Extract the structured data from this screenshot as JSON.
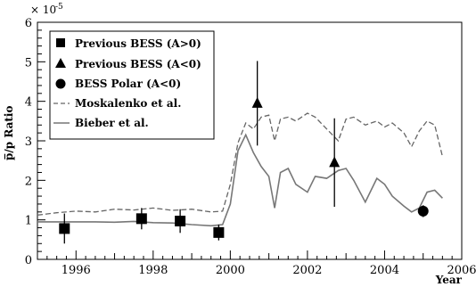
{
  "chart_data": {
    "type": "scatter",
    "title": "",
    "xlabel": "Year",
    "ylabel": "p̅/p Ratio",
    "y_exponent_label": "× 10",
    "y_exponent_power": "-5",
    "xlim": [
      1995,
      2006
    ],
    "ylim": [
      0,
      6
    ],
    "x_ticks": [
      1996,
      1998,
      2000,
      2002,
      2004,
      2006
    ],
    "y_ticks": [
      0,
      1,
      2,
      3,
      4,
      5,
      6
    ],
    "grid": false,
    "legend_position": "top-left",
    "series": [
      {
        "name": "Previous BESS (A>0)",
        "kind": "points",
        "marker": "square",
        "points": [
          {
            "x": 1995.7,
            "y": 0.78,
            "err": 0.38
          },
          {
            "x": 1997.7,
            "y": 1.03,
            "err": 0.27
          },
          {
            "x": 1998.7,
            "y": 0.97,
            "err": 0.3
          },
          {
            "x": 1999.7,
            "y": 0.68,
            "err": 0.2
          }
        ]
      },
      {
        "name": "Previous BESS (A<0)",
        "kind": "points",
        "marker": "triangle",
        "points": [
          {
            "x": 2000.7,
            "y": 3.95,
            "err": 1.07
          },
          {
            "x": 2002.7,
            "y": 2.45,
            "err": 1.12
          }
        ]
      },
      {
        "name": "BESS Polar (A<0)",
        "kind": "points",
        "marker": "circle",
        "points": [
          {
            "x": 2005.0,
            "y": 1.22,
            "err": 0.15
          }
        ]
      },
      {
        "name": "Moskalenko et al.",
        "kind": "line",
        "style": "dashed",
        "color": "#666666",
        "x": [
          1995.0,
          1995.5,
          1996.0,
          1996.5,
          1997.0,
          1997.5,
          1998.0,
          1998.5,
          1999.0,
          1999.5,
          1999.8,
          2000.0,
          2000.2,
          2000.4,
          2000.6,
          2000.8,
          2001.0,
          2001.15,
          2001.3,
          2001.5,
          2001.7,
          2002.0,
          2002.2,
          2002.5,
          2002.8,
          2003.0,
          2003.2,
          2003.5,
          2003.8,
          2004.0,
          2004.2,
          2004.5,
          2004.7,
          2004.9,
          2005.1,
          2005.3,
          2005.5
        ],
        "y": [
          1.12,
          1.18,
          1.22,
          1.2,
          1.27,
          1.25,
          1.3,
          1.24,
          1.27,
          1.2,
          1.22,
          1.9,
          2.95,
          3.45,
          3.3,
          3.6,
          3.65,
          3.0,
          3.55,
          3.6,
          3.5,
          3.7,
          3.6,
          3.3,
          3.0,
          3.55,
          3.6,
          3.4,
          3.5,
          3.35,
          3.45,
          3.2,
          2.85,
          3.25,
          3.5,
          3.4,
          2.6
        ]
      },
      {
        "name": "Bieber et al.",
        "kind": "line",
        "style": "solid",
        "color": "#777777",
        "x": [
          1995.0,
          1995.5,
          1996.0,
          1996.5,
          1997.0,
          1997.5,
          1998.0,
          1998.5,
          1999.0,
          1999.5,
          1999.8,
          2000.0,
          2000.2,
          2000.4,
          2000.6,
          2000.8,
          2001.0,
          2001.15,
          2001.3,
          2001.5,
          2001.7,
          2002.0,
          2002.2,
          2002.5,
          2002.8,
          2003.0,
          2003.2,
          2003.5,
          2003.8,
          2004.0,
          2004.2,
          2004.5,
          2004.7,
          2004.9,
          2005.1,
          2005.3,
          2005.5
        ],
        "y": [
          0.95,
          0.95,
          0.95,
          0.95,
          0.94,
          0.96,
          0.93,
          0.92,
          0.88,
          0.85,
          0.88,
          1.4,
          2.75,
          3.15,
          2.7,
          2.35,
          2.1,
          1.3,
          2.2,
          2.3,
          1.9,
          1.7,
          2.1,
          2.05,
          2.25,
          2.3,
          2.0,
          1.45,
          2.05,
          1.9,
          1.6,
          1.35,
          1.2,
          1.3,
          1.7,
          1.75,
          1.55
        ]
      }
    ]
  }
}
